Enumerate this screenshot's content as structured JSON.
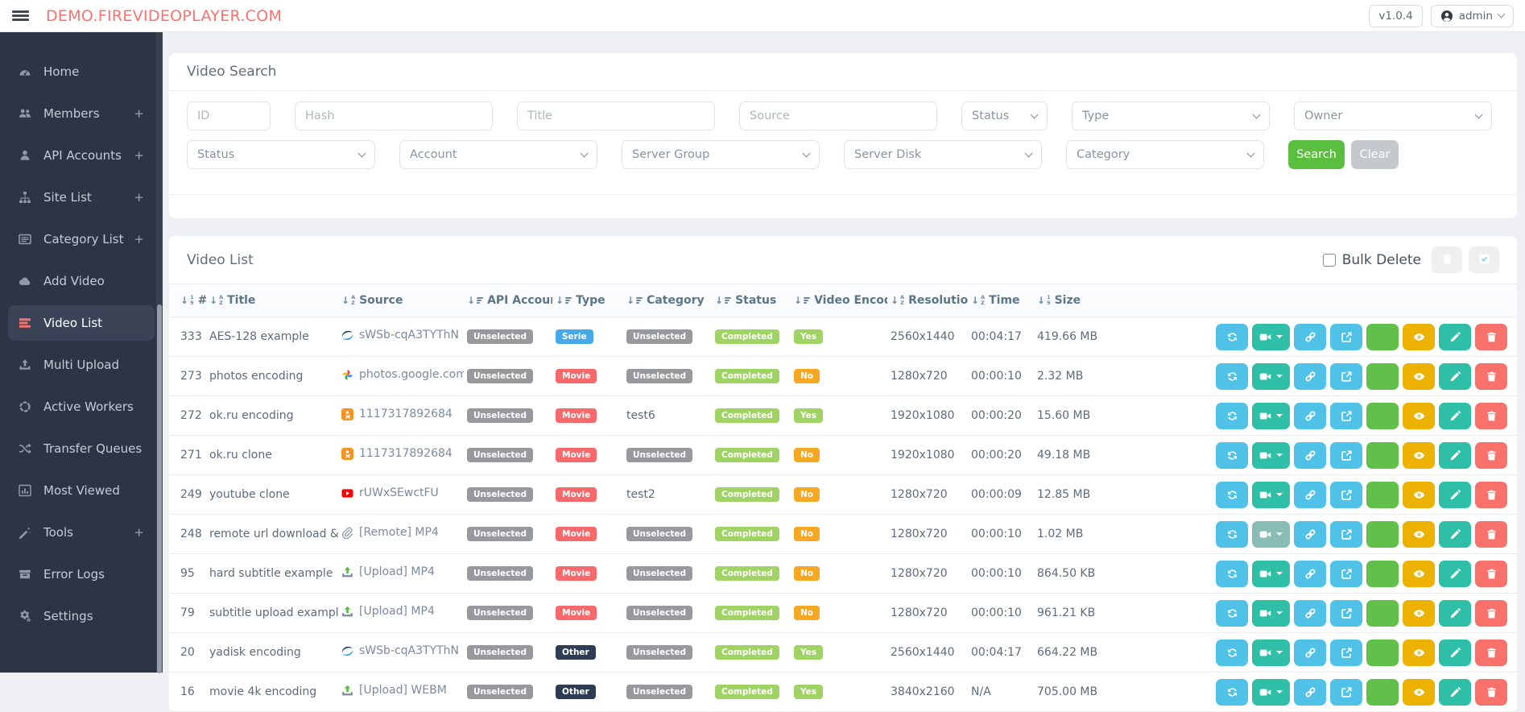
{
  "navbar": {
    "logo": "DEMO.FIREVIDEOPLAYER.COM",
    "version": "v1.0.4",
    "user": "admin"
  },
  "colors": {
    "accent": "#f8726e",
    "sidebar_bg": "#2d3446",
    "search_button": "#5abe3f",
    "clear_button": "#c4c9ce",
    "bulk_delete_button": "#ec9191",
    "bulk_check_button": "#85d3ec",
    "badge_colors": {
      "gray": "#98999d",
      "blue": "#47a8ea",
      "red": "#f8696b",
      "navy": "#2e3c54",
      "green": "#9fd363",
      "amber": "#f6a823"
    }
  },
  "sidebar": {
    "items": [
      {
        "label": "Home",
        "icon": "gauge",
        "expandable": false,
        "active": false
      },
      {
        "label": "Members",
        "icon": "users",
        "expandable": true,
        "active": false
      },
      {
        "label": "API Accounts",
        "icon": "user",
        "expandable": true,
        "active": false
      },
      {
        "label": "Site List",
        "icon": "sitemap",
        "expandable": true,
        "active": false
      },
      {
        "label": "Category List",
        "icon": "list",
        "expandable": true,
        "active": false
      },
      {
        "label": "Add Video",
        "icon": "cloud",
        "expandable": false,
        "active": false
      },
      {
        "label": "Video List",
        "icon": "rows",
        "expandable": false,
        "active": true
      },
      {
        "label": "Multi Upload",
        "icon": "upload",
        "expandable": false,
        "active": false
      },
      {
        "label": "Active Workers",
        "icon": "spinner",
        "expandable": false,
        "active": false
      },
      {
        "label": "Transfer Queues",
        "icon": "shuffle",
        "expandable": false,
        "active": false
      },
      {
        "label": "Most Viewed",
        "icon": "chart",
        "expandable": false,
        "active": false
      },
      {
        "label": "Tools",
        "icon": "wand",
        "expandable": true,
        "active": false
      },
      {
        "label": "Error Logs",
        "icon": "archive",
        "expandable": false,
        "active": false
      },
      {
        "label": "Settings",
        "icon": "gear",
        "expandable": false,
        "active": false
      }
    ]
  },
  "search_card": {
    "title": "Video Search",
    "filters_row1": [
      {
        "kind": "input",
        "placeholder": "ID",
        "size": "s1"
      },
      {
        "kind": "input",
        "placeholder": "Hash",
        "size": "s4"
      },
      {
        "kind": "input",
        "placeholder": "Title",
        "size": "s4"
      },
      {
        "kind": "input",
        "placeholder": "Source",
        "size": "s4"
      },
      {
        "kind": "select",
        "label": "Status",
        "size": "s2"
      },
      {
        "kind": "select",
        "label": "Type",
        "size": "s4"
      },
      {
        "kind": "select",
        "label": "Owner",
        "size": "s4"
      }
    ],
    "filters_row2": [
      {
        "kind": "select",
        "label": "Status",
        "size": "s3"
      },
      {
        "kind": "select",
        "label": "Account",
        "size": "s4"
      },
      {
        "kind": "select",
        "label": "Server Group",
        "size": "s4"
      },
      {
        "kind": "select",
        "label": "Server Disk",
        "size": "s4"
      },
      {
        "kind": "select",
        "label": "Category",
        "size": "s4"
      }
    ],
    "search_label": "Search",
    "clear_label": "Clear"
  },
  "list_card": {
    "title": "Video List",
    "bulk_delete_label": "Bulk Delete",
    "columns": [
      {
        "label": "#",
        "sort": "num"
      },
      {
        "label": "Title",
        "sort": "alpha"
      },
      {
        "label": "Source",
        "sort": "alpha"
      },
      {
        "label": "API Account",
        "sort": "list"
      },
      {
        "label": "Type",
        "sort": "list"
      },
      {
        "label": "Category",
        "sort": "list"
      },
      {
        "label": "Status",
        "sort": "list"
      },
      {
        "label": "Video Encode",
        "sort": "list"
      },
      {
        "label": "Resolution",
        "sort": "alpha"
      },
      {
        "label": "Time",
        "sort": "alpha"
      },
      {
        "label": "Size",
        "sort": "num"
      }
    ],
    "actions": [
      {
        "name": "encode-refresh-button",
        "icon": "sync",
        "color": "#50c2e8"
      },
      {
        "name": "video-dropdown-button",
        "icon": "camera",
        "color": "#2fbfa7",
        "caret": true
      },
      {
        "name": "copy-link-button",
        "icon": "link",
        "color": "#50c2e8"
      },
      {
        "name": "open-external-button",
        "icon": "external",
        "color": "#50c2e8"
      },
      {
        "name": "embed-code-button",
        "icon": "code",
        "color": "#61c04a",
        "text": "</>"
      },
      {
        "name": "preview-button",
        "icon": "eye",
        "color": "#edb100"
      },
      {
        "name": "edit-button",
        "icon": "pencil",
        "color": "#2fbfa7"
      },
      {
        "name": "delete-button",
        "icon": "trash",
        "color": "#f8716b"
      }
    ],
    "rows": [
      {
        "id": "333",
        "title": "AES-128 example",
        "source": {
          "icon": "yandex-disk",
          "text": "sWSb-cqA3TYThN"
        },
        "api_account": "Unselected",
        "type": {
          "text": "Serie",
          "color": "blue"
        },
        "category": {
          "text": "Unselected",
          "badge": true
        },
        "status": "Completed",
        "encode": "Yes",
        "resolution": "2560x1440",
        "time": "00:04:17",
        "size": "419.66 MB"
      },
      {
        "id": "273",
        "title": "photos encoding",
        "source": {
          "icon": "google-photos",
          "text": "photos.google.com"
        },
        "api_account": "Unselected",
        "type": {
          "text": "Movie",
          "color": "red"
        },
        "category": {
          "text": "Unselected",
          "badge": true
        },
        "status": "Completed",
        "encode": "No",
        "resolution": "1280x720",
        "time": "00:00:10",
        "size": "2.32 MB"
      },
      {
        "id": "272",
        "title": "ok.ru encoding",
        "source": {
          "icon": "okru",
          "text": "1117317892684"
        },
        "api_account": "Unselected",
        "type": {
          "text": "Movie",
          "color": "red"
        },
        "category": {
          "text": "test6",
          "badge": false
        },
        "status": "Completed",
        "encode": "Yes",
        "resolution": "1920x1080",
        "time": "00:00:20",
        "size": "15.60 MB"
      },
      {
        "id": "271",
        "title": "ok.ru clone",
        "source": {
          "icon": "okru",
          "text": "1117317892684"
        },
        "api_account": "Unselected",
        "type": {
          "text": "Movie",
          "color": "red"
        },
        "category": {
          "text": "Unselected",
          "badge": true
        },
        "status": "Completed",
        "encode": "No",
        "resolution": "1920x1080",
        "time": "00:00:20",
        "size": "49.18 MB"
      },
      {
        "id": "249",
        "title": "youtube clone",
        "source": {
          "icon": "youtube",
          "text": "rUWxSEwctFU"
        },
        "api_account": "Unselected",
        "type": {
          "text": "Movie",
          "color": "red"
        },
        "category": {
          "text": "test2",
          "badge": false
        },
        "status": "Completed",
        "encode": "No",
        "resolution": "1280x720",
        "time": "00:00:09",
        "size": "12.85 MB"
      },
      {
        "id": "248",
        "title": "remote url download & en...",
        "source": {
          "icon": "remote",
          "text": "[Remote] MP4"
        },
        "api_account": "Unselected",
        "type": {
          "text": "Movie",
          "color": "red"
        },
        "category": {
          "text": "Unselected",
          "badge": true
        },
        "status": "Completed",
        "encode": "No",
        "resolution": "1280x720",
        "time": "00:00:10",
        "size": "1.02 MB",
        "muted_action": "camera"
      },
      {
        "id": "95",
        "title": "hard subtitle example",
        "source": {
          "icon": "upload-file",
          "text": "[Upload] MP4"
        },
        "api_account": "Unselected",
        "type": {
          "text": "Movie",
          "color": "red"
        },
        "category": {
          "text": "Unselected",
          "badge": true
        },
        "status": "Completed",
        "encode": "No",
        "resolution": "1280x720",
        "time": "00:00:10",
        "size": "864.50 KB"
      },
      {
        "id": "79",
        "title": "subtitle upload example",
        "source": {
          "icon": "upload-file",
          "text": "[Upload] MP4"
        },
        "api_account": "Unselected",
        "type": {
          "text": "Movie",
          "color": "red"
        },
        "category": {
          "text": "Unselected",
          "badge": true
        },
        "status": "Completed",
        "encode": "No",
        "resolution": "1280x720",
        "time": "00:00:10",
        "size": "961.21 KB"
      },
      {
        "id": "20",
        "title": "yadisk encoding",
        "source": {
          "icon": "yandex-disk",
          "text": "sWSb-cqA3TYThN"
        },
        "api_account": "Unselected",
        "type": {
          "text": "Other",
          "color": "navy"
        },
        "category": {
          "text": "Unselected",
          "badge": true
        },
        "status": "Completed",
        "encode": "Yes",
        "resolution": "2560x1440",
        "time": "00:04:17",
        "size": "664.22 MB"
      },
      {
        "id": "16",
        "title": "movie 4k encoding",
        "source": {
          "icon": "upload-file",
          "text": "[Upload] WEBM"
        },
        "api_account": "Unselected",
        "type": {
          "text": "Other",
          "color": "navy"
        },
        "category": {
          "text": "Unselected",
          "badge": true
        },
        "status": "Completed",
        "encode": "Yes",
        "resolution": "3840x2160",
        "time": "N/A",
        "size": "705.00 MB"
      }
    ]
  }
}
